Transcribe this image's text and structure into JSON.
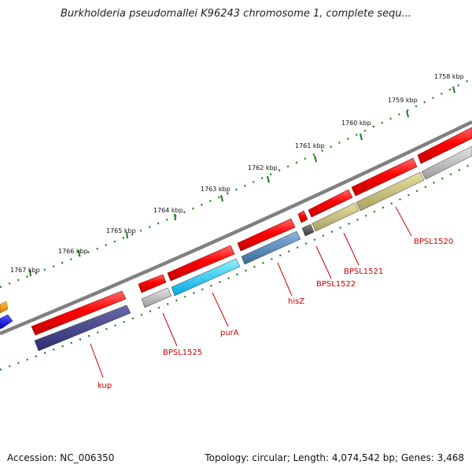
{
  "title": "Burkholderia pseudomallei K96243 chromosome 1, complete sequ...",
  "footer": {
    "accession": "Accession: NC_006350",
    "summary": "Topology: circular; Length: 4,074,542 bp; Genes: 3,468"
  },
  "colors": {
    "label_red": "#cc0000",
    "tick_green": "#1a7a1a",
    "backbone": "#808080"
  },
  "scale": {
    "unit": "kbp",
    "labels": [
      "1758 kbp",
      "1759 kbp",
      "1760 kbp",
      "1761 kbp",
      "1762 kbp",
      "1763 kbp",
      "1764 kbp",
      "1765 kbp",
      "1766 kbp",
      "1767 kbp"
    ]
  },
  "gene_labels": [
    {
      "name": "kup",
      "label": "kup"
    },
    {
      "name": "bpsl1525",
      "label": "BPSL1525"
    },
    {
      "name": "pura",
      "label": "purA"
    },
    {
      "name": "hisz",
      "label": "hisZ"
    },
    {
      "name": "bpsl1522",
      "label": "BPSL1522"
    },
    {
      "name": "bpsl1521",
      "label": "BPSL1521"
    },
    {
      "name": "bpsl1520",
      "label": "BPSL1520"
    }
  ]
}
